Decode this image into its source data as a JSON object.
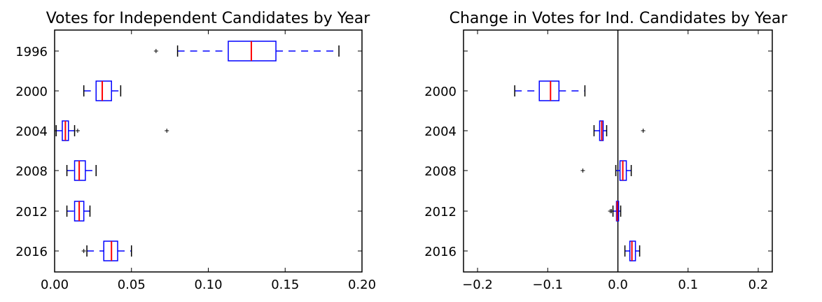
{
  "chart_data": [
    {
      "type": "box",
      "orientation": "horizontal",
      "title": "Votes for Independent Candidates by Year",
      "xlim": [
        0.0,
        0.2
      ],
      "xticks": [
        0.0,
        0.05,
        0.1,
        0.15,
        0.2
      ],
      "xtick_labels": [
        "0.00",
        "0.05",
        "0.10",
        "0.15",
        "0.20"
      ],
      "categories": [
        "1996",
        "2000",
        "2004",
        "2008",
        "2012",
        "2016"
      ],
      "boxes": [
        {
          "category": "1996",
          "whislo": 0.08,
          "q1": 0.113,
          "med": 0.128,
          "q3": 0.144,
          "whishi": 0.185,
          "fliers": [
            0.066
          ]
        },
        {
          "category": "2000",
          "whislo": 0.019,
          "q1": 0.027,
          "med": 0.031,
          "q3": 0.037,
          "whishi": 0.043,
          "fliers": []
        },
        {
          "category": "2004",
          "whislo": 0.001,
          "q1": 0.005,
          "med": 0.007,
          "q3": 0.009,
          "whishi": 0.013,
          "fliers": [
            0.015,
            0.073
          ]
        },
        {
          "category": "2008",
          "whislo": 0.008,
          "q1": 0.013,
          "med": 0.016,
          "q3": 0.02,
          "whishi": 0.027,
          "fliers": []
        },
        {
          "category": "2012",
          "whislo": 0.008,
          "q1": 0.013,
          "med": 0.016,
          "q3": 0.019,
          "whishi": 0.023,
          "fliers": []
        },
        {
          "category": "2016",
          "whislo": 0.021,
          "q1": 0.032,
          "med": 0.037,
          "q3": 0.041,
          "whishi": 0.05,
          "fliers": [
            0.019
          ]
        }
      ]
    },
    {
      "type": "box",
      "orientation": "horizontal",
      "title": "Change in Votes for Ind. Candidates by Year",
      "xlim": [
        -0.22,
        0.22
      ],
      "xticks": [
        -0.2,
        -0.1,
        0.0,
        0.1,
        0.2
      ],
      "xtick_labels": [
        "−0.2",
        "−0.1",
        "0.0",
        "0.1",
        "0.2"
      ],
      "categories": [
        "1996",
        "2000",
        "2004",
        "2008",
        "2012",
        "2016"
      ],
      "tick_labels_shown": [
        "",
        "2000",
        "2004",
        "2008",
        "2012",
        "2016"
      ],
      "zero_line": true,
      "boxes": [
        {
          "category": "2000",
          "whislo": -0.147,
          "q1": -0.112,
          "med": -0.096,
          "q3": -0.084,
          "whishi": -0.047,
          "fliers": []
        },
        {
          "category": "2004",
          "whislo": -0.034,
          "q1": -0.026,
          "med": -0.023,
          "q3": -0.021,
          "whishi": -0.016,
          "fliers": [
            0.036
          ]
        },
        {
          "category": "2008",
          "whislo": -0.003,
          "q1": 0.003,
          "med": 0.007,
          "q3": 0.012,
          "whishi": 0.019,
          "fliers": [
            -0.05
          ]
        },
        {
          "category": "2012",
          "whislo": -0.007,
          "q1": -0.002,
          "med": -0.001,
          "q3": 0.001,
          "whishi": 0.004,
          "fliers": [
            -0.011,
            -0.009
          ]
        },
        {
          "category": "2016",
          "whislo": 0.01,
          "q1": 0.017,
          "med": 0.02,
          "q3": 0.025,
          "whishi": 0.031,
          "fliers": []
        }
      ]
    }
  ]
}
